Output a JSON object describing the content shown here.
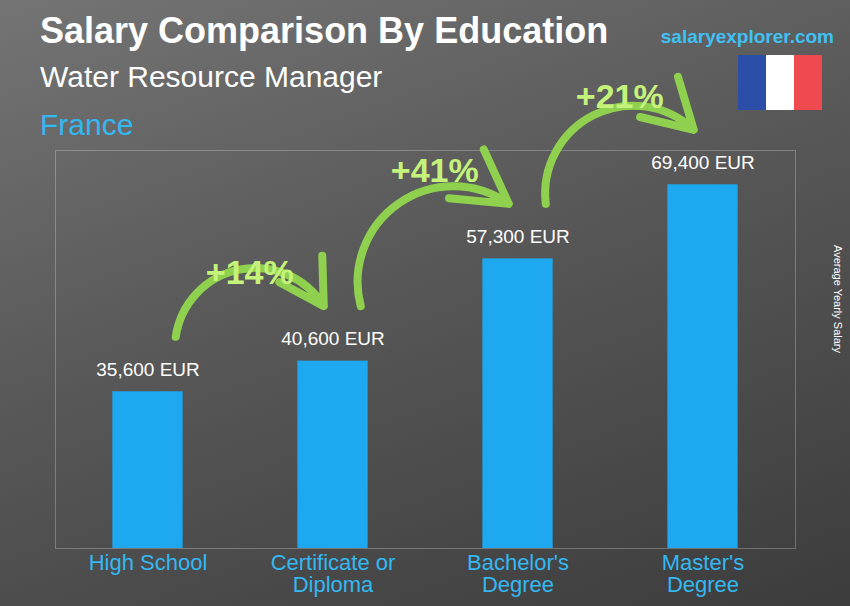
{
  "chart_data": {
    "type": "bar",
    "title": "Salary Comparison By Education",
    "subtitle": "Water Resource Manager",
    "country": "France",
    "source": "salaryexplorer.com",
    "y_label": "Average Yearly Salary",
    "categories": [
      "High School",
      "Certificate or Diploma",
      "Bachelor's Degree",
      "Master's Degree"
    ],
    "values": [
      35600,
      40600,
      57300,
      69400
    ],
    "value_labels": [
      "35,600 EUR",
      "40,600 EUR",
      "57,300 EUR",
      "69,400 EUR"
    ],
    "annotations": [
      "+14%",
      "+41%",
      "+21%"
    ],
    "color": "#1ea8ef",
    "ylim": [
      10000,
      75000
    ],
    "data_labels": true,
    "tick_labels": "x",
    "grid": false
  }
}
